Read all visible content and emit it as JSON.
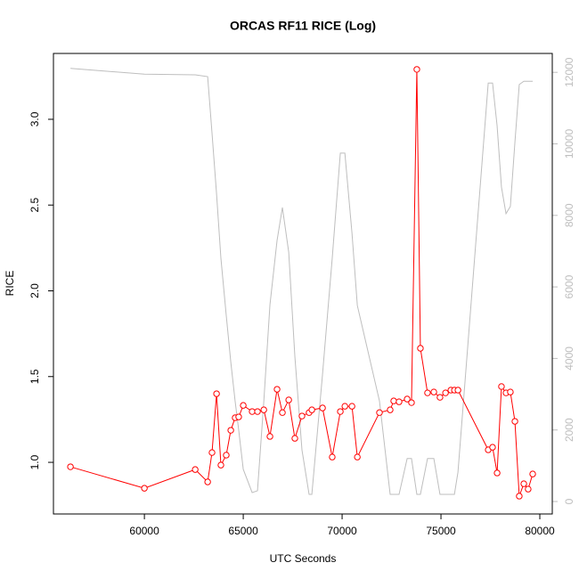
{
  "chart_data": {
    "type": "line",
    "title": "ORCAS RF11 RICE (Log)",
    "x_label": "UTC Seconds",
    "y_label": "RICE",
    "x": [
      56260,
      60000,
      62570,
      63200,
      63420,
      63650,
      63870,
      64140,
      64370,
      64590,
      64770,
      65000,
      65450,
      65720,
      66040,
      66350,
      66710,
      66980,
      67300,
      67610,
      67970,
      68330,
      68470,
      69010,
      69500,
      69910,
      70140,
      70500,
      70770,
      71890,
      72430,
      72610,
      72880,
      73290,
      73510,
      73780,
      73960,
      74320,
      74640,
      74950,
      75230,
      75500,
      75680,
      75860,
      77390,
      77610,
      77840,
      78060,
      78290,
      78510,
      78740,
      78960,
      79190,
      79410,
      79640
    ],
    "series": [
      {
        "color": "#ff0000",
        "values": [
          0.974,
          0.849,
          0.958,
          0.886,
          1.057,
          1.4,
          0.984,
          1.042,
          1.187,
          1.26,
          1.265,
          1.332,
          1.296,
          1.296,
          1.306,
          1.151,
          1.426,
          1.29,
          1.364,
          1.14,
          1.27,
          1.29,
          1.306,
          1.317,
          1.031,
          1.296,
          1.327,
          1.327,
          1.031,
          1.29,
          1.306,
          1.358,
          1.353,
          1.369,
          1.348,
          3.291,
          1.665,
          1.405,
          1.41,
          1.379,
          1.405,
          1.421,
          1.421,
          1.421,
          1.073,
          1.088,
          0.938,
          1.442,
          1.405,
          1.41,
          1.239,
          0.803,
          0.875,
          0.844,
          0.932
        ]
      },
      {
        "color": "#bebebe",
        "axis": "y2",
        "values": [
          12110,
          11950,
          11930,
          11880,
          10300,
          8600,
          6800,
          5200,
          3900,
          2800,
          2000,
          900,
          250,
          300,
          2800,
          5500,
          7300,
          8220,
          6970,
          4060,
          1440,
          200,
          200,
          3560,
          6800,
          9740,
          9740,
          7500,
          5480,
          2810,
          200,
          200,
          200,
          1200,
          1200,
          200,
          200,
          1200,
          1200,
          200,
          200,
          200,
          200,
          820,
          11700,
          11700,
          10500,
          8790,
          8050,
          8250,
          10040,
          11660,
          11750,
          11750,
          11750
        ]
      }
    ],
    "xlim": [
      55400,
      80630
    ],
    "xticks": [
      60000,
      65000,
      70000,
      75000,
      80000
    ],
    "ylim": [
      0.699,
      3.384
    ],
    "yticks": [
      {
        "value": 1,
        "label": "1.0"
      },
      {
        "value": 1.5,
        "label": "1.5"
      },
      {
        "value": 2,
        "label": "2.0"
      },
      {
        "value": 2.5,
        "label": "2.5"
      },
      {
        "value": 3,
        "label": "3.0"
      }
    ],
    "y2lim": [
      -349,
      12528
    ],
    "y2ticks": [
      0,
      2000,
      4000,
      6000,
      8000,
      10000,
      12000
    ]
  }
}
